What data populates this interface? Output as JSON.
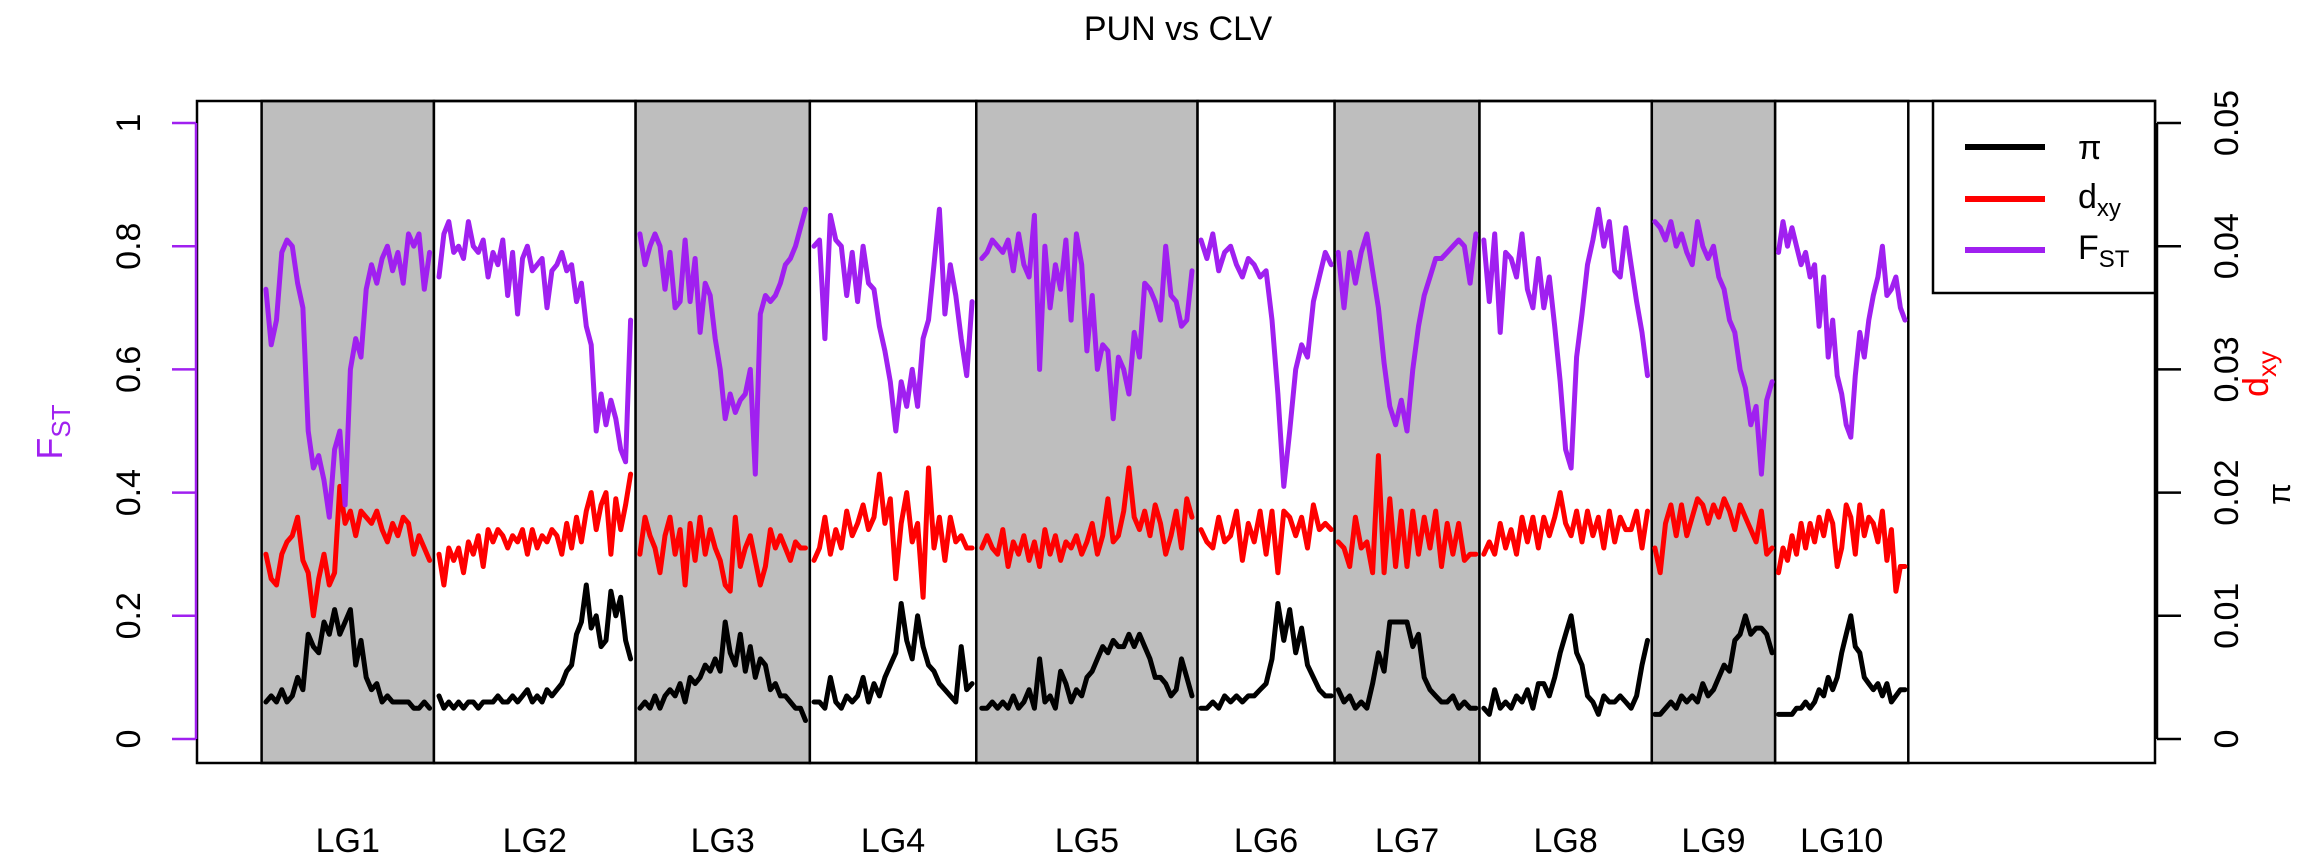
{
  "chart_data": {
    "type": "line",
    "title": "PUN vs CLV",
    "left_axis": {
      "label_main": "F",
      "label_sub": "ST",
      "color": "#A020F0",
      "range": [
        0,
        1
      ],
      "ticks": [
        0,
        0.2,
        0.4,
        0.6,
        0.8,
        1
      ],
      "tick_labels": [
        "0",
        "0.2",
        "0.4",
        "0.6",
        "0.8",
        "1"
      ]
    },
    "right_axis": {
      "range": [
        0,
        0.05
      ],
      "ticks": [
        0,
        0.01,
        0.02,
        0.03,
        0.04,
        0.05
      ],
      "tick_labels": [
        "0",
        "0.01",
        "0.02",
        "0.03",
        "0.04",
        "0.05"
      ],
      "label_dxy_main": "d",
      "label_dxy_sub": "xy",
      "label_dxy_color": "#FF0000",
      "label_pi": "π",
      "label_pi_color": "#000000"
    },
    "legend": {
      "position": "top-right",
      "entries": [
        {
          "main": "π",
          "sub": "",
          "color": "#000000"
        },
        {
          "main": "d",
          "sub": "xy",
          "color": "#FF0000"
        },
        {
          "main": "F",
          "sub": "ST",
          "color": "#A020F0"
        }
      ]
    },
    "grid": false,
    "shading_color": "#BEBEBE",
    "x_start": 0,
    "x_end": 1000,
    "linkage_groups": [
      {
        "name": "LG1",
        "start": 33,
        "end": 121,
        "shaded": true,
        "fst": [
          0.73,
          0.64,
          0.68,
          0.79,
          0.81,
          0.8,
          0.74,
          0.7,
          0.5,
          0.44,
          0.46,
          0.42,
          0.36,
          0.47,
          0.5,
          0.38,
          0.6,
          0.65,
          0.62,
          0.73,
          0.77,
          0.74,
          0.78,
          0.8,
          0.76,
          0.79,
          0.74,
          0.82,
          0.8,
          0.82,
          0.73,
          0.79
        ],
        "dxy": [
          0.3,
          0.26,
          0.25,
          0.3,
          0.32,
          0.33,
          0.36,
          0.29,
          0.27,
          0.2,
          0.26,
          0.3,
          0.25,
          0.27,
          0.41,
          0.35,
          0.37,
          0.33,
          0.37,
          0.36,
          0.35,
          0.37,
          0.34,
          0.32,
          0.35,
          0.33,
          0.36,
          0.35,
          0.3,
          0.33,
          0.31,
          0.29
        ],
        "pi": [
          0.06,
          0.07,
          0.06,
          0.08,
          0.06,
          0.07,
          0.1,
          0.08,
          0.17,
          0.15,
          0.14,
          0.19,
          0.17,
          0.21,
          0.17,
          0.19,
          0.21,
          0.12,
          0.16,
          0.1,
          0.08,
          0.09,
          0.06,
          0.07,
          0.06,
          0.06,
          0.06,
          0.06,
          0.05,
          0.05,
          0.06,
          0.05
        ]
      },
      {
        "name": "LG2",
        "start": 121,
        "end": 224,
        "shaded": false,
        "fst": [
          0.75,
          0.82,
          0.84,
          0.79,
          0.8,
          0.78,
          0.84,
          0.8,
          0.79,
          0.81,
          0.75,
          0.79,
          0.77,
          0.81,
          0.72,
          0.79,
          0.69,
          0.78,
          0.8,
          0.76,
          0.77,
          0.78,
          0.7,
          0.76,
          0.77,
          0.79,
          0.76,
          0.77,
          0.71,
          0.74,
          0.67,
          0.64,
          0.5,
          0.56,
          0.51,
          0.55,
          0.52,
          0.47,
          0.45,
          0.68
        ],
        "dxy": [
          0.3,
          0.25,
          0.31,
          0.29,
          0.31,
          0.27,
          0.32,
          0.3,
          0.33,
          0.28,
          0.34,
          0.32,
          0.34,
          0.33,
          0.31,
          0.33,
          0.32,
          0.34,
          0.3,
          0.34,
          0.31,
          0.33,
          0.32,
          0.34,
          0.33,
          0.3,
          0.35,
          0.31,
          0.36,
          0.32,
          0.37,
          0.4,
          0.34,
          0.38,
          0.4,
          0.3,
          0.39,
          0.34,
          0.38,
          0.43
        ],
        "pi": [
          0.07,
          0.05,
          0.06,
          0.05,
          0.06,
          0.05,
          0.06,
          0.06,
          0.05,
          0.06,
          0.06,
          0.06,
          0.07,
          0.06,
          0.06,
          0.07,
          0.06,
          0.07,
          0.08,
          0.06,
          0.07,
          0.06,
          0.08,
          0.07,
          0.08,
          0.09,
          0.11,
          0.12,
          0.17,
          0.19,
          0.25,
          0.18,
          0.2,
          0.15,
          0.16,
          0.24,
          0.2,
          0.23,
          0.16,
          0.13
        ]
      },
      {
        "name": "LG3",
        "start": 224,
        "end": 313,
        "shaded": true,
        "fst": [
          0.82,
          0.77,
          0.8,
          0.82,
          0.8,
          0.73,
          0.79,
          0.7,
          0.71,
          0.81,
          0.71,
          0.78,
          0.66,
          0.74,
          0.72,
          0.65,
          0.6,
          0.52,
          0.56,
          0.53,
          0.55,
          0.56,
          0.6,
          0.43,
          0.69,
          0.72,
          0.71,
          0.72,
          0.74,
          0.77,
          0.78,
          0.8,
          0.83,
          0.86
        ],
        "dxy": [
          0.3,
          0.36,
          0.33,
          0.31,
          0.27,
          0.33,
          0.36,
          0.3,
          0.34,
          0.25,
          0.35,
          0.29,
          0.36,
          0.3,
          0.34,
          0.31,
          0.29,
          0.25,
          0.24,
          0.36,
          0.28,
          0.31,
          0.33,
          0.29,
          0.25,
          0.28,
          0.34,
          0.31,
          0.33,
          0.31,
          0.29,
          0.32,
          0.31,
          0.31
        ],
        "pi": [
          0.05,
          0.06,
          0.05,
          0.07,
          0.05,
          0.07,
          0.08,
          0.07,
          0.09,
          0.06,
          0.1,
          0.09,
          0.1,
          0.12,
          0.11,
          0.13,
          0.11,
          0.19,
          0.14,
          0.12,
          0.17,
          0.11,
          0.15,
          0.1,
          0.13,
          0.12,
          0.08,
          0.09,
          0.07,
          0.07,
          0.06,
          0.05,
          0.05,
          0.03
        ]
      },
      {
        "name": "LG4",
        "start": 313,
        "end": 398,
        "shaded": false,
        "fst": [
          0.8,
          0.81,
          0.65,
          0.85,
          0.81,
          0.8,
          0.72,
          0.79,
          0.71,
          0.8,
          0.74,
          0.73,
          0.67,
          0.63,
          0.58,
          0.5,
          0.58,
          0.54,
          0.6,
          0.54,
          0.65,
          0.68,
          0.77,
          0.86,
          0.69,
          0.77,
          0.72,
          0.65,
          0.59,
          0.71
        ],
        "dxy": [
          0.29,
          0.31,
          0.36,
          0.3,
          0.34,
          0.31,
          0.37,
          0.33,
          0.35,
          0.38,
          0.34,
          0.36,
          0.43,
          0.35,
          0.39,
          0.26,
          0.35,
          0.4,
          0.32,
          0.35,
          0.23,
          0.44,
          0.31,
          0.36,
          0.29,
          0.36,
          0.32,
          0.33,
          0.31,
          0.31
        ],
        "pi": [
          0.06,
          0.06,
          0.05,
          0.1,
          0.06,
          0.05,
          0.07,
          0.06,
          0.07,
          0.1,
          0.06,
          0.09,
          0.07,
          0.1,
          0.12,
          0.14,
          0.22,
          0.16,
          0.13,
          0.2,
          0.15,
          0.12,
          0.11,
          0.09,
          0.08,
          0.07,
          0.06,
          0.15,
          0.08,
          0.09
        ]
      },
      {
        "name": "LG5",
        "start": 398,
        "end": 511,
        "shaded": true,
        "fst": [
          0.78,
          0.79,
          0.81,
          0.8,
          0.79,
          0.81,
          0.76,
          0.82,
          0.77,
          0.75,
          0.85,
          0.6,
          0.8,
          0.7,
          0.77,
          0.73,
          0.81,
          0.68,
          0.82,
          0.77,
          0.63,
          0.72,
          0.6,
          0.64,
          0.63,
          0.52,
          0.62,
          0.6,
          0.56,
          0.66,
          0.62,
          0.74,
          0.73,
          0.71,
          0.68,
          0.8,
          0.72,
          0.71,
          0.67,
          0.68,
          0.76
        ],
        "dxy": [
          0.31,
          0.33,
          0.31,
          0.3,
          0.34,
          0.28,
          0.32,
          0.3,
          0.33,
          0.29,
          0.32,
          0.28,
          0.34,
          0.3,
          0.33,
          0.29,
          0.32,
          0.31,
          0.33,
          0.3,
          0.32,
          0.35,
          0.3,
          0.33,
          0.39,
          0.32,
          0.33,
          0.37,
          0.44,
          0.36,
          0.34,
          0.37,
          0.33,
          0.38,
          0.35,
          0.3,
          0.33,
          0.37,
          0.31,
          0.39,
          0.36
        ],
        "pi": [
          0.05,
          0.05,
          0.06,
          0.05,
          0.06,
          0.05,
          0.07,
          0.05,
          0.06,
          0.08,
          0.05,
          0.13,
          0.06,
          0.07,
          0.05,
          0.11,
          0.09,
          0.06,
          0.08,
          0.07,
          0.1,
          0.11,
          0.13,
          0.15,
          0.14,
          0.16,
          0.15,
          0.15,
          0.17,
          0.15,
          0.17,
          0.15,
          0.13,
          0.1,
          0.1,
          0.09,
          0.07,
          0.08,
          0.13,
          0.1,
          0.07
        ]
      },
      {
        "name": "LG6",
        "start": 511,
        "end": 581,
        "shaded": false,
        "fst": [
          0.81,
          0.78,
          0.82,
          0.76,
          0.79,
          0.8,
          0.77,
          0.75,
          0.78,
          0.77,
          0.75,
          0.76,
          0.68,
          0.56,
          0.41,
          0.5,
          0.6,
          0.64,
          0.62,
          0.71,
          0.75,
          0.79,
          0.77
        ],
        "dxy": [
          0.34,
          0.32,
          0.31,
          0.36,
          0.32,
          0.33,
          0.37,
          0.29,
          0.35,
          0.32,
          0.37,
          0.3,
          0.37,
          0.27,
          0.37,
          0.36,
          0.33,
          0.36,
          0.31,
          0.38,
          0.34,
          0.35,
          0.34
        ],
        "pi": [
          0.05,
          0.05,
          0.06,
          0.05,
          0.07,
          0.06,
          0.07,
          0.06,
          0.07,
          0.07,
          0.08,
          0.09,
          0.13,
          0.22,
          0.16,
          0.21,
          0.14,
          0.18,
          0.12,
          0.1,
          0.08,
          0.07,
          0.07
        ]
      },
      {
        "name": "LG7",
        "start": 581,
        "end": 655,
        "shaded": true,
        "fst": [
          0.79,
          0.7,
          0.79,
          0.74,
          0.79,
          0.82,
          0.76,
          0.7,
          0.61,
          0.54,
          0.51,
          0.55,
          0.5,
          0.6,
          0.67,
          0.72,
          0.75,
          0.78,
          0.78,
          0.79,
          0.8,
          0.81,
          0.8,
          0.74,
          0.82
        ],
        "dxy": [
          0.32,
          0.31,
          0.28,
          0.36,
          0.31,
          0.32,
          0.27,
          0.46,
          0.27,
          0.39,
          0.28,
          0.37,
          0.28,
          0.37,
          0.3,
          0.36,
          0.31,
          0.37,
          0.28,
          0.35,
          0.3,
          0.35,
          0.29,
          0.3,
          0.3
        ],
        "pi": [
          0.08,
          0.06,
          0.07,
          0.05,
          0.06,
          0.05,
          0.09,
          0.14,
          0.11,
          0.19,
          0.19,
          0.19,
          0.19,
          0.15,
          0.17,
          0.1,
          0.08,
          0.07,
          0.06,
          0.06,
          0.07,
          0.05,
          0.06,
          0.05,
          0.05
        ]
      },
      {
        "name": "LG8",
        "start": 655,
        "end": 743,
        "shaded": false,
        "fst": [
          0.81,
          0.71,
          0.82,
          0.66,
          0.79,
          0.78,
          0.75,
          0.82,
          0.73,
          0.7,
          0.78,
          0.7,
          0.75,
          0.67,
          0.58,
          0.47,
          0.44,
          0.62,
          0.69,
          0.77,
          0.81,
          0.86,
          0.8,
          0.84,
          0.76,
          0.75,
          0.83,
          0.77,
          0.71,
          0.66,
          0.59
        ],
        "dxy": [
          0.3,
          0.32,
          0.3,
          0.35,
          0.31,
          0.34,
          0.3,
          0.36,
          0.32,
          0.36,
          0.31,
          0.36,
          0.33,
          0.36,
          0.4,
          0.35,
          0.33,
          0.37,
          0.32,
          0.37,
          0.33,
          0.36,
          0.31,
          0.37,
          0.32,
          0.36,
          0.34,
          0.34,
          0.37,
          0.31,
          0.37
        ],
        "pi": [
          0.05,
          0.04,
          0.08,
          0.05,
          0.06,
          0.05,
          0.07,
          0.06,
          0.08,
          0.05,
          0.09,
          0.09,
          0.07,
          0.1,
          0.14,
          0.17,
          0.2,
          0.14,
          0.12,
          0.07,
          0.06,
          0.04,
          0.07,
          0.06,
          0.06,
          0.07,
          0.06,
          0.05,
          0.07,
          0.12,
          0.16
        ]
      },
      {
        "name": "LG9",
        "start": 743,
        "end": 806,
        "shaded": true,
        "fst": [
          0.84,
          0.83,
          0.81,
          0.84,
          0.8,
          0.82,
          0.79,
          0.77,
          0.84,
          0.8,
          0.78,
          0.8,
          0.75,
          0.73,
          0.68,
          0.66,
          0.6,
          0.57,
          0.51,
          0.54,
          0.43,
          0.55,
          0.58
        ],
        "dxy": [
          0.31,
          0.27,
          0.35,
          0.38,
          0.33,
          0.38,
          0.33,
          0.36,
          0.39,
          0.38,
          0.35,
          0.38,
          0.36,
          0.39,
          0.37,
          0.34,
          0.38,
          0.36,
          0.34,
          0.32,
          0.37,
          0.3,
          0.31
        ],
        "pi": [
          0.04,
          0.04,
          0.05,
          0.06,
          0.05,
          0.07,
          0.06,
          0.07,
          0.06,
          0.09,
          0.07,
          0.08,
          0.1,
          0.12,
          0.11,
          0.16,
          0.17,
          0.2,
          0.17,
          0.18,
          0.18,
          0.17,
          0.14
        ]
      },
      {
        "name": "LG10",
        "start": 806,
        "end": 874,
        "shaded": false,
        "fst": [
          0.79,
          0.84,
          0.8,
          0.83,
          0.8,
          0.77,
          0.79,
          0.75,
          0.77,
          0.67,
          0.75,
          0.62,
          0.68,
          0.59,
          0.56,
          0.51,
          0.49,
          0.59,
          0.66,
          0.62,
          0.68,
          0.72,
          0.75,
          0.8,
          0.72,
          0.73,
          0.75,
          0.7,
          0.68
        ],
        "dxy": [
          0.27,
          0.31,
          0.29,
          0.33,
          0.3,
          0.35,
          0.31,
          0.35,
          0.32,
          0.36,
          0.33,
          0.37,
          0.35,
          0.28,
          0.31,
          0.38,
          0.36,
          0.3,
          0.38,
          0.33,
          0.36,
          0.35,
          0.32,
          0.37,
          0.29,
          0.34,
          0.24,
          0.28,
          0.28
        ],
        "pi": [
          0.04,
          0.04,
          0.04,
          0.04,
          0.05,
          0.05,
          0.06,
          0.05,
          0.06,
          0.08,
          0.07,
          0.1,
          0.08,
          0.1,
          0.14,
          0.17,
          0.2,
          0.15,
          0.14,
          0.1,
          0.09,
          0.08,
          0.09,
          0.07,
          0.09,
          0.06,
          0.07,
          0.08,
          0.08
        ]
      }
    ]
  }
}
